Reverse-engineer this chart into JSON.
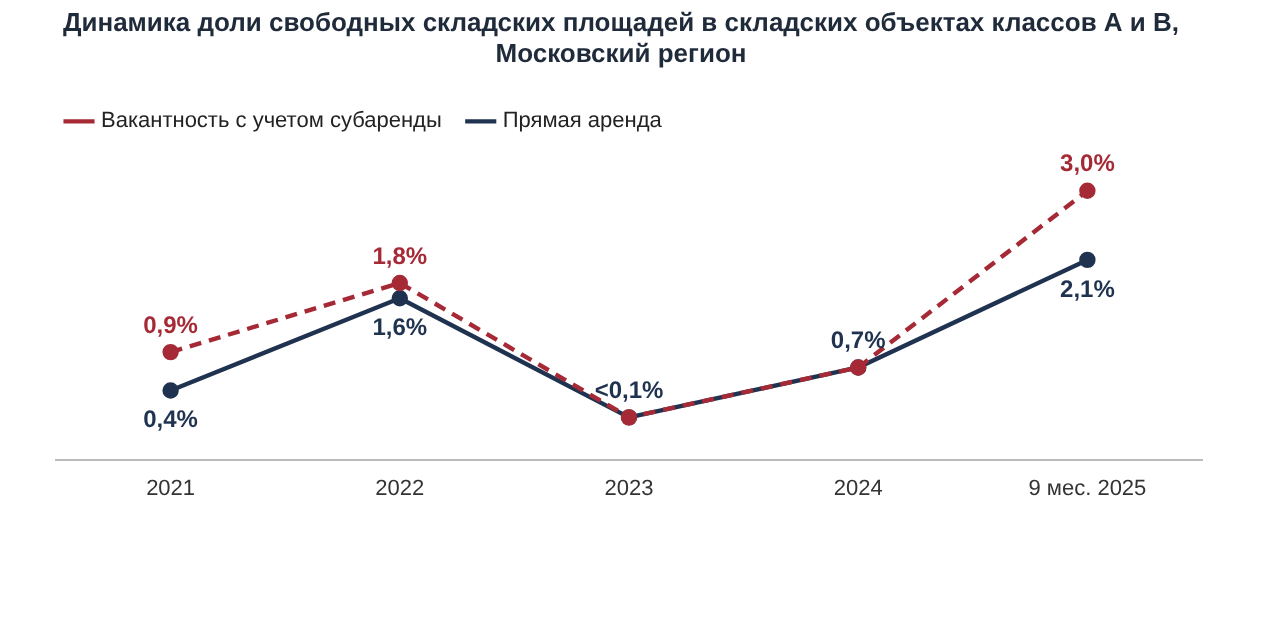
{
  "chart_data": {
    "type": "line",
    "title": [
      "Динамика доли свободных складских площадей в складских объектах классов А и В,",
      "Московский регион"
    ],
    "categories": [
      "2021",
      "2022",
      "2023",
      "2024",
      "9 мес. 2025"
    ],
    "series": [
      {
        "name": "Вакантность с учетом субаренды",
        "color": "#a52a36",
        "values": [
          0.9,
          1.8,
          0.05,
          0.7,
          3.0
        ],
        "line_style": "dashed",
        "value_labels": [
          "0,9%",
          "1,8%",
          null,
          null,
          "3,0%"
        ]
      },
      {
        "name": "Прямая аренда",
        "color": "#1f3350",
        "values": [
          0.4,
          1.6,
          0.05,
          0.7,
          2.1
        ],
        "line_style": "solid",
        "value_labels": [
          "0,4%",
          "1,6%",
          "<0,1%",
          "0,7%",
          "2,1%"
        ]
      }
    ],
    "tick_labels": "x",
    "grid": false,
    "legend": "top left",
    "marker": "circle"
  }
}
